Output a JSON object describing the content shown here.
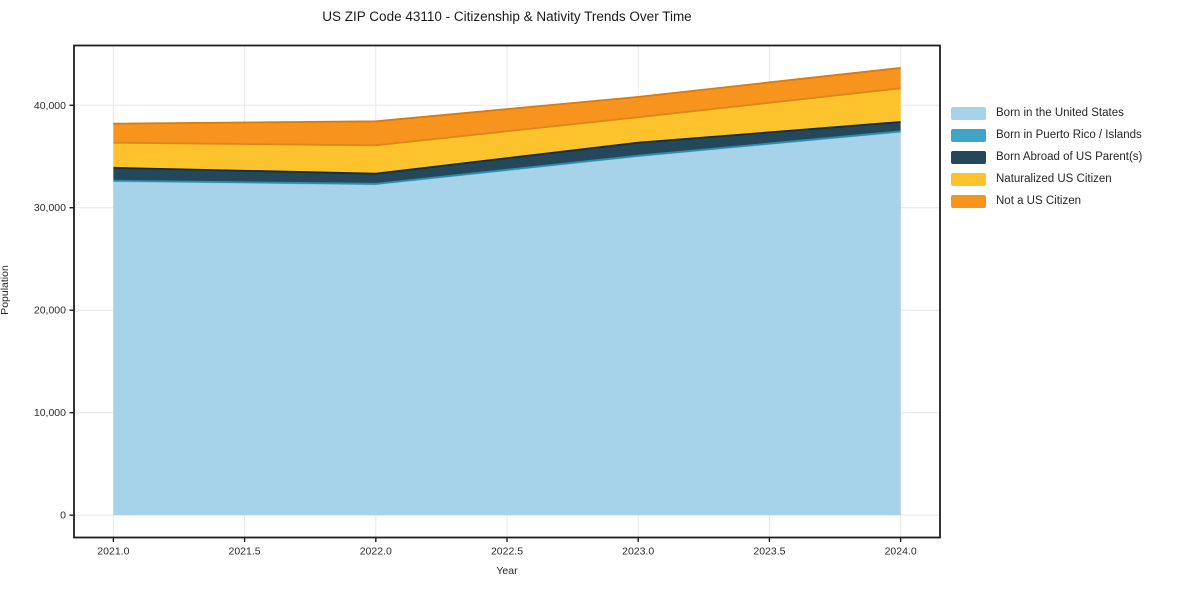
{
  "chart_data": {
    "type": "area",
    "stacked": true,
    "title": "US ZIP Code 43110 - Citizenship & Nativity Trends Over Time",
    "xlabel": "Year",
    "ylabel": "Population",
    "x": [
      2021,
      2022,
      2023,
      2024
    ],
    "series": [
      {
        "name": "Born in the United States",
        "color": "#a7d3ea",
        "edge": "#74b4d4",
        "values": [
          32600,
          32300,
          35040,
          37420
        ]
      },
      {
        "name": "Born in Puerto Rico / Islands",
        "color": "#40a5c4",
        "edge": "#2b8dad",
        "values": [
          40,
          40,
          40,
          40
        ]
      },
      {
        "name": "Born Abroad of US Parent(s)",
        "color": "#24485a",
        "edge": "#142f3d",
        "values": [
          1260,
          980,
          1270,
          910
        ]
      },
      {
        "name": "Naturalized US Citizen",
        "color": "#fcc32d",
        "edge": "#e08616",
        "values": [
          2450,
          2770,
          2480,
          3290
        ]
      },
      {
        "name": "Not a US Citizen",
        "color": "#f7941e",
        "edge": "#da7b10",
        "values": [
          1860,
          2340,
          1990,
          1990
        ]
      }
    ],
    "xticks": [
      2021.0,
      2021.5,
      2022.0,
      2022.5,
      2023.0,
      2023.5,
      2024.0
    ],
    "xtick_labels": [
      "2021.0",
      "2021.5",
      "2022.0",
      "2022.5",
      "2023.0",
      "2023.5",
      "2024.0"
    ],
    "yticks": [
      0,
      10000,
      20000,
      30000,
      40000
    ],
    "ytick_labels": [
      "0",
      "10,000",
      "20,000",
      "30,000",
      "40,000"
    ],
    "xlim": [
      2020.85,
      2024.15
    ],
    "ylim": [
      -2182,
      45832
    ],
    "grid": true,
    "grid_color": "#e7e7e7",
    "spine_color": "#1f1f1f",
    "tick_label_color": "#2b2b2b",
    "legend_position": "right"
  }
}
